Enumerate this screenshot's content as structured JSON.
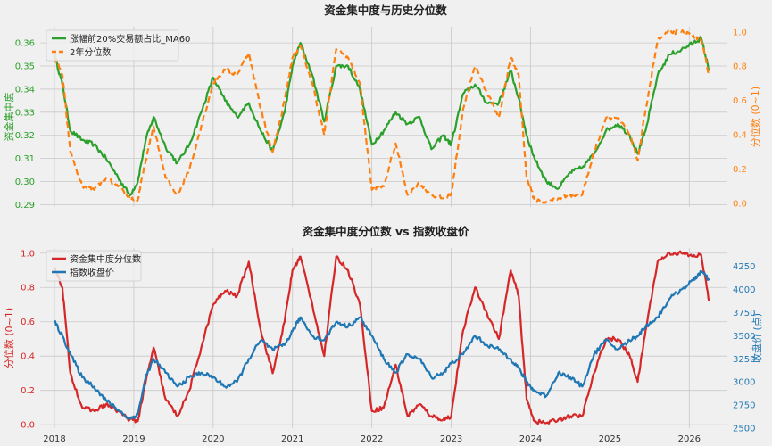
{
  "colors": {
    "green": "#2ca02c",
    "orange": "#ff7f0e",
    "red": "#d62728",
    "blue": "#1f77b4",
    "bg": "#f0f0f0"
  },
  "chart_data": [
    {
      "type": "line",
      "title": "资金集中度与历史分位数",
      "ylabel_left": "资金集中度",
      "ylabel_right": "分位数 (0~1)",
      "ylim_left": [
        0.289,
        0.367
      ],
      "ylim_right": [
        -0.02,
        1.03
      ],
      "yticks_left": [
        "0.29",
        "0.30",
        "0.31",
        "0.32",
        "0.33",
        "0.34",
        "0.35",
        "0.36"
      ],
      "yticks_left_values": [
        0.29,
        0.3,
        0.31,
        0.32,
        0.33,
        0.34,
        0.35,
        0.36
      ],
      "yticks_right": [
        "0.0",
        "0.2",
        "0.4",
        "0.6",
        "0.8",
        "1.0"
      ],
      "yticks_right_values": [
        0.0,
        0.2,
        0.4,
        0.6,
        0.8,
        1.0
      ],
      "series": [
        {
          "name": "涨幅前20%交易额占比_MA60",
          "axis": "left",
          "color": "#2ca02c",
          "style": "solid",
          "x": [
            2018.0,
            2018.1,
            2018.2,
            2018.35,
            2018.5,
            2018.65,
            2018.8,
            2018.95,
            2019.05,
            2019.15,
            2019.25,
            2019.4,
            2019.55,
            2019.7,
            2019.85,
            2020.0,
            2020.15,
            2020.3,
            2020.45,
            2020.6,
            2020.75,
            2020.9,
            2021.0,
            2021.1,
            2021.25,
            2021.4,
            2021.55,
            2021.7,
            2021.85,
            2022.0,
            2022.15,
            2022.3,
            2022.45,
            2022.6,
            2022.75,
            2022.9,
            2023.0,
            2023.15,
            2023.3,
            2023.45,
            2023.6,
            2023.75,
            2023.85,
            2023.95,
            2024.05,
            2024.2,
            2024.35,
            2024.5,
            2024.65,
            2024.8,
            2024.95,
            2025.1,
            2025.25,
            2025.35,
            2025.45,
            2025.6,
            2025.75,
            2025.9,
            2026.05,
            2026.15,
            2026.25
          ],
          "y": [
            0.355,
            0.342,
            0.322,
            0.318,
            0.316,
            0.31,
            0.302,
            0.294,
            0.3,
            0.318,
            0.328,
            0.315,
            0.308,
            0.316,
            0.33,
            0.345,
            0.335,
            0.328,
            0.334,
            0.322,
            0.313,
            0.33,
            0.35,
            0.36,
            0.346,
            0.326,
            0.35,
            0.35,
            0.34,
            0.316,
            0.322,
            0.33,
            0.325,
            0.328,
            0.314,
            0.32,
            0.316,
            0.338,
            0.342,
            0.334,
            0.334,
            0.348,
            0.336,
            0.32,
            0.31,
            0.3,
            0.297,
            0.304,
            0.306,
            0.312,
            0.322,
            0.325,
            0.32,
            0.312,
            0.322,
            0.346,
            0.355,
            0.357,
            0.36,
            0.362,
            0.348
          ]
        },
        {
          "name": "2年分位数",
          "axis": "right",
          "color": "#ff7f0e",
          "style": "dashed",
          "x": [
            2018.0,
            2018.1,
            2018.2,
            2018.35,
            2018.5,
            2018.65,
            2018.8,
            2018.95,
            2019.05,
            2019.15,
            2019.25,
            2019.4,
            2019.55,
            2019.7,
            2019.85,
            2020.0,
            2020.15,
            2020.3,
            2020.45,
            2020.6,
            2020.75,
            2020.9,
            2021.0,
            2021.1,
            2021.25,
            2021.4,
            2021.55,
            2021.7,
            2021.85,
            2022.0,
            2022.15,
            2022.3,
            2022.45,
            2022.6,
            2022.75,
            2022.9,
            2023.0,
            2023.15,
            2023.3,
            2023.45,
            2023.6,
            2023.75,
            2023.85,
            2023.95,
            2024.05,
            2024.2,
            2024.35,
            2024.5,
            2024.65,
            2024.8,
            2024.95,
            2025.1,
            2025.25,
            2025.35,
            2025.45,
            2025.6,
            2025.75,
            2025.9,
            2026.05,
            2026.15,
            2026.25
          ],
          "y": [
            0.85,
            0.75,
            0.3,
            0.1,
            0.08,
            0.15,
            0.1,
            0.03,
            0.02,
            0.25,
            0.45,
            0.15,
            0.05,
            0.2,
            0.45,
            0.7,
            0.78,
            0.75,
            0.88,
            0.55,
            0.3,
            0.6,
            0.85,
            0.92,
            0.7,
            0.4,
            0.9,
            0.85,
            0.7,
            0.08,
            0.1,
            0.35,
            0.05,
            0.12,
            0.05,
            0.03,
            0.05,
            0.55,
            0.8,
            0.65,
            0.5,
            0.85,
            0.75,
            0.15,
            0.02,
            0.01,
            0.03,
            0.05,
            0.05,
            0.3,
            0.5,
            0.5,
            0.4,
            0.25,
            0.55,
            0.95,
            1.0,
            1.0,
            0.98,
            0.95,
            0.75
          ]
        }
      ]
    },
    {
      "type": "line",
      "title": "资金集中度分位数 vs 指数收盘价",
      "ylabel_left": "分位数 (0~1)",
      "ylabel_right": "收盘价 (点)",
      "ylim_left": [
        -0.02,
        1.03
      ],
      "ylim_right": [
        2500,
        4450
      ],
      "yticks_left": [
        "0.0",
        "0.2",
        "0.4",
        "0.6",
        "0.8",
        "1.0"
      ],
      "yticks_left_values": [
        0.0,
        0.2,
        0.4,
        0.6,
        0.8,
        1.0
      ],
      "yticks_right": [
        "2500",
        "2750",
        "3000",
        "3250",
        "3500",
        "3750",
        "4000",
        "4250"
      ],
      "yticks_right_values": [
        2500,
        2750,
        3000,
        3250,
        3500,
        3750,
        4000,
        4250
      ],
      "xticks": [
        "2018",
        "2019",
        "2020",
        "2021",
        "2022",
        "2023",
        "2024",
        "2025",
        "2026"
      ],
      "xticks_values": [
        2018,
        2019,
        2020,
        2021,
        2022,
        2023,
        2024,
        2025,
        2026
      ],
      "series": [
        {
          "name": "资金集中度分位数",
          "axis": "left",
          "color": "#d62728",
          "style": "solid",
          "x": [
            2018.0,
            2018.1,
            2018.2,
            2018.35,
            2018.5,
            2018.65,
            2018.8,
            2018.95,
            2019.05,
            2019.15,
            2019.25,
            2019.4,
            2019.55,
            2019.7,
            2019.85,
            2020.0,
            2020.15,
            2020.3,
            2020.45,
            2020.6,
            2020.75,
            2020.9,
            2021.0,
            2021.1,
            2021.25,
            2021.4,
            2021.55,
            2021.7,
            2021.85,
            2022.0,
            2022.15,
            2022.3,
            2022.45,
            2022.6,
            2022.75,
            2022.9,
            2023.0,
            2023.15,
            2023.3,
            2023.45,
            2023.6,
            2023.75,
            2023.85,
            2023.95,
            2024.05,
            2024.2,
            2024.35,
            2024.5,
            2024.65,
            2024.8,
            2024.95,
            2025.1,
            2025.25,
            2025.35,
            2025.45,
            2025.6,
            2025.75,
            2025.9,
            2026.05,
            2026.15,
            2026.25
          ],
          "y": [
            0.92,
            0.8,
            0.3,
            0.1,
            0.08,
            0.12,
            0.08,
            0.03,
            0.02,
            0.25,
            0.45,
            0.15,
            0.05,
            0.2,
            0.45,
            0.7,
            0.78,
            0.75,
            0.95,
            0.55,
            0.3,
            0.6,
            0.9,
            0.98,
            0.7,
            0.4,
            0.98,
            0.9,
            0.7,
            0.08,
            0.1,
            0.35,
            0.05,
            0.12,
            0.05,
            0.03,
            0.05,
            0.55,
            0.8,
            0.65,
            0.5,
            0.9,
            0.75,
            0.15,
            0.02,
            0.01,
            0.03,
            0.05,
            0.05,
            0.3,
            0.5,
            0.5,
            0.4,
            0.25,
            0.55,
            0.95,
            1.0,
            1.0,
            0.98,
            0.99,
            0.72
          ]
        },
        {
          "name": "指数收盘价",
          "axis": "right",
          "color": "#1f77b4",
          "style": "solid",
          "x": [
            2018.0,
            2018.1,
            2018.2,
            2018.35,
            2018.5,
            2018.65,
            2018.8,
            2018.95,
            2019.05,
            2019.15,
            2019.25,
            2019.4,
            2019.55,
            2019.7,
            2019.85,
            2020.0,
            2020.15,
            2020.3,
            2020.45,
            2020.6,
            2020.75,
            2020.9,
            2021.0,
            2021.1,
            2021.25,
            2021.4,
            2021.55,
            2021.7,
            2021.85,
            2022.0,
            2022.15,
            2022.3,
            2022.45,
            2022.6,
            2022.75,
            2022.9,
            2023.0,
            2023.15,
            2023.3,
            2023.45,
            2023.6,
            2023.75,
            2023.85,
            2023.95,
            2024.05,
            2024.2,
            2024.35,
            2024.5,
            2024.65,
            2024.8,
            2024.95,
            2025.1,
            2025.25,
            2025.35,
            2025.45,
            2025.6,
            2025.75,
            2025.9,
            2026.05,
            2026.15,
            2026.25
          ],
          "y": [
            3650,
            3500,
            3300,
            3050,
            2950,
            2800,
            2700,
            2600,
            2650,
            3050,
            3250,
            3100,
            2950,
            3050,
            3100,
            3050,
            2950,
            3000,
            3250,
            3450,
            3350,
            3400,
            3550,
            3700,
            3500,
            3450,
            3650,
            3600,
            3700,
            3500,
            3250,
            3100,
            3300,
            3250,
            3050,
            3100,
            3200,
            3300,
            3500,
            3400,
            3350,
            3250,
            3150,
            3000,
            2900,
            2850,
            3100,
            3050,
            2950,
            3300,
            3450,
            3350,
            3450,
            3500,
            3600,
            3700,
            3900,
            4000,
            4100,
            4200,
            4100
          ]
        }
      ]
    }
  ]
}
